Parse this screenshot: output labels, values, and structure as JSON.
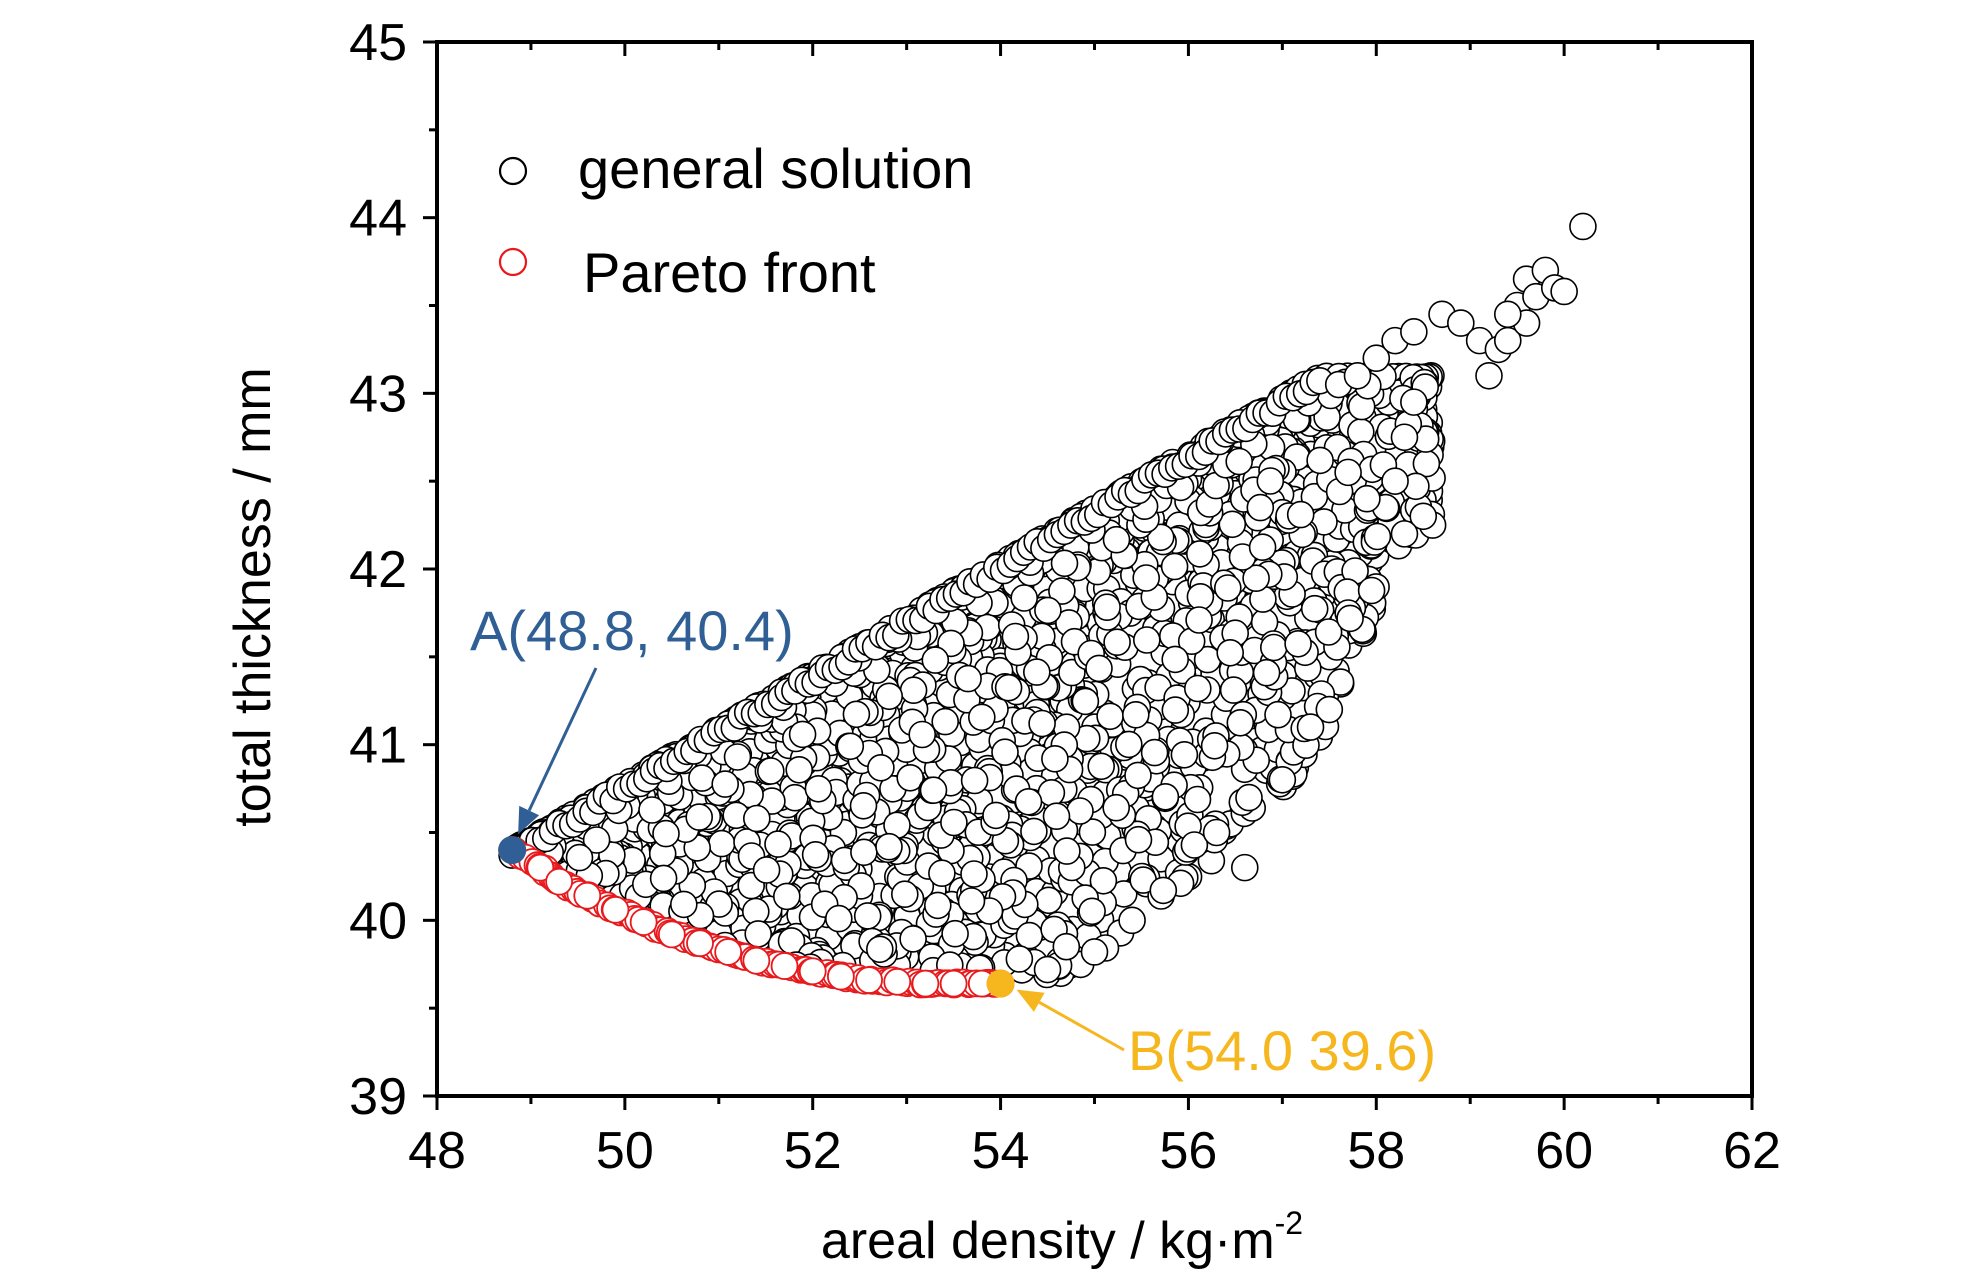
{
  "chart_data": {
    "type": "scatter",
    "title": "",
    "xlabel": "areal density / kg·m",
    "xlabel_superscript": "-2",
    "ylabel": "total thickness / mm",
    "xlim": [
      48,
      62
    ],
    "ylim": [
      39,
      45
    ],
    "x_ticks": [
      48,
      50,
      52,
      54,
      56,
      58,
      60,
      62
    ],
    "y_ticks": [
      39,
      40,
      41,
      42,
      43,
      44,
      45
    ],
    "grid": false,
    "legend_position": "top-left",
    "legend": [
      {
        "label": "general solution",
        "color": "#000000",
        "marker": "open-circle"
      },
      {
        "label": "Pareto front",
        "color": "#e8191c",
        "marker": "open-circle"
      }
    ],
    "general_solution_region": {
      "upper_edge": [
        [
          48.8,
          40.4
        ],
        [
          57.4,
          43.1
        ]
      ],
      "lower_edge": [
        [
          48.8,
          40.4
        ],
        [
          50.5,
          39.95
        ],
        [
          52.0,
          39.7
        ],
        [
          54.0,
          39.65
        ],
        [
          54.8,
          39.7
        ],
        [
          56.0,
          40.2
        ],
        [
          57.0,
          40.7
        ],
        [
          57.6,
          41.2
        ],
        [
          58.1,
          42.0
        ],
        [
          58.6,
          42.3
        ]
      ],
      "outliers": [
        [
          57.6,
          43.05
        ],
        [
          57.8,
          43.1
        ],
        [
          58.0,
          43.2
        ],
        [
          58.2,
          43.3
        ],
        [
          58.4,
          43.35
        ],
        [
          58.7,
          43.45
        ],
        [
          58.9,
          43.4
        ],
        [
          59.1,
          43.3
        ],
        [
          59.2,
          43.1
        ],
        [
          59.3,
          43.25
        ],
        [
          59.4,
          43.3
        ],
        [
          59.5,
          43.5
        ],
        [
          59.6,
          43.65
        ],
        [
          59.7,
          43.55
        ],
        [
          59.8,
          43.7
        ],
        [
          59.9,
          43.6
        ],
        [
          60.0,
          43.58
        ],
        [
          60.2,
          43.95
        ],
        [
          59.6,
          43.4
        ],
        [
          59.4,
          43.45
        ],
        [
          58.4,
          42.95
        ],
        [
          58.3,
          42.75
        ],
        [
          58.2,
          42.5
        ],
        [
          58.1,
          42.35
        ],
        [
          58.6,
          42.25
        ],
        [
          58.5,
          42.3
        ],
        [
          58.3,
          42.2
        ],
        [
          57.9,
          42.4
        ],
        [
          57.7,
          42.55
        ],
        [
          57.5,
          41.2
        ],
        [
          57.3,
          41.1
        ],
        [
          57.0,
          40.8
        ],
        [
          56.6,
          40.3
        ],
        [
          56.3,
          40.5
        ],
        [
          55.4,
          40.0
        ],
        [
          55.0,
          39.82
        ],
        [
          54.5,
          39.72
        ],
        [
          54.2,
          39.78
        ],
        [
          54.7,
          39.85
        ]
      ],
      "count_hint": 2600
    },
    "pareto_front": {
      "x": [
        48.8,
        49.1,
        49.3,
        49.6,
        49.9,
        50.2,
        50.5,
        50.8,
        51.1,
        51.4,
        51.7,
        52.0,
        52.3,
        52.6,
        52.9,
        53.2,
        53.5,
        53.8,
        54.0
      ],
      "y": [
        40.4,
        40.3,
        40.22,
        40.14,
        40.06,
        39.99,
        39.92,
        39.87,
        39.82,
        39.77,
        39.74,
        39.71,
        39.68,
        39.66,
        39.65,
        39.64,
        39.64,
        39.64,
        39.64
      ]
    },
    "annotations": [
      {
        "label": "A(48.8, 40.4)",
        "x": 48.8,
        "y": 40.4,
        "color": "#2f5f94"
      },
      {
        "label": "B(54.0 39.6)",
        "x": 54.0,
        "y": 39.64,
        "color": "#f5b71d"
      }
    ]
  }
}
